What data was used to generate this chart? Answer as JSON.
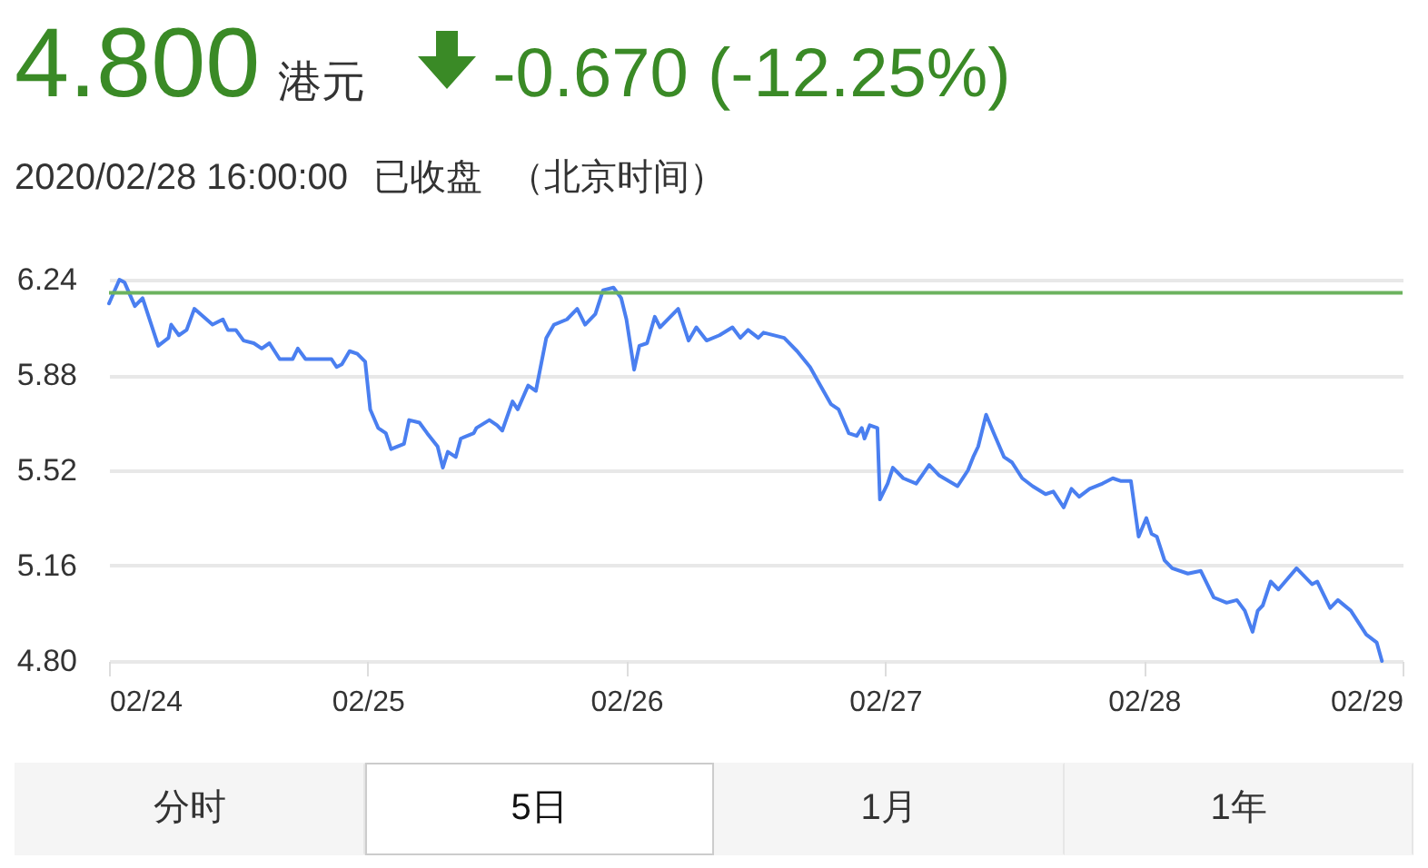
{
  "chart_data": {
    "type": "line",
    "title": "4.800",
    "annotations": [
      "港元",
      "-0.670 (-12.25%)",
      "2020/02/28 16:00:00",
      "已收盘",
      "（北京时间）",
      "分时",
      "5日",
      "1月",
      "1年"
    ],
    "x": [
      "2020-02-24T00:00",
      "2020-02-24T00:58",
      "2020-02-24T01:26",
      "2020-02-24T02:24",
      "2020-02-24T03:07",
      "2020-02-24T04:05",
      "2020-02-24T04:34",
      "2020-02-24T05:31",
      "2020-02-24T05:46",
      "2020-02-24T06:29",
      "2020-02-24T07:12",
      "2020-02-24T07:55",
      "2020-02-24T09:36",
      "2020-02-24T10:34",
      "2020-02-24T11:02",
      "2020-02-24T11:46",
      "2020-02-24T12:29",
      "2020-02-24T13:26",
      "2020-02-24T14:10",
      "2020-02-24T14:53",
      "2020-02-24T15:50",
      "2020-02-24T17:02",
      "2020-02-24T17:31",
      "2020-02-24T18:14",
      "2020-02-24T19:26",
      "2020-02-24T20:38",
      "2020-02-24T21:07",
      "2020-02-24T21:36",
      "2020-02-24T22:19",
      "2020-02-24T23:02",
      "2020-02-24T23:46",
      "2020-02-25T00:14",
      "2020-02-25T00:58",
      "2020-02-25T01:41",
      "2020-02-25T02:10",
      "2020-02-25T03:22",
      "2020-02-25T03:50",
      "2020-02-25T04:48",
      "2020-02-25T05:31",
      "2020-02-25T06:29",
      "2020-02-25T06:58",
      "2020-02-25T07:26",
      "2020-02-25T08:10",
      "2020-02-25T08:38",
      "2020-02-25T09:50",
      "2020-02-25T10:05",
      "2020-02-25T11:17",
      "2020-02-25T12:00",
      "2020-02-25T12:29",
      "2020-02-25T13:26",
      "2020-02-25T13:55",
      "2020-02-25T14:53",
      "2020-02-25T15:36",
      "2020-02-25T16:34",
      "2020-02-25T17:17",
      "2020-02-25T18:29",
      "2020-02-25T19:26",
      "2020-02-25T20:10",
      "2020-02-25T21:07",
      "2020-02-25T21:50",
      "2020-02-25T22:48",
      "2020-02-25T23:31",
      "2020-02-26T00:00",
      "2020-02-26T00:43",
      "2020-02-26T01:12",
      "2020-02-26T01:55",
      "2020-02-26T02:38",
      "2020-02-26T03:07",
      "2020-02-26T04:48",
      "2020-02-26T05:46",
      "2020-02-26T06:29",
      "2020-02-26T07:26",
      "2020-02-26T08:38",
      "2020-02-26T09:50",
      "2020-02-26T10:34",
      "2020-02-26T11:17",
      "2020-02-26T12:14",
      "2020-02-26T12:43",
      "2020-02-26T14:38",
      "2020-02-26T15:50",
      "2020-02-26T17:02",
      "2020-02-26T18:00",
      "2020-02-26T18:58",
      "2020-02-26T19:41",
      "2020-02-26T20:38",
      "2020-02-26T21:22",
      "2020-02-26T21:50",
      "2020-02-26T22:05",
      "2020-02-26T22:34",
      "2020-02-26T23:17",
      "2020-02-26T23:31",
      "2020-02-27T00:14",
      "2020-02-27T00:43",
      "2020-02-27T01:41",
      "2020-02-27T02:53",
      "2020-02-27T04:05",
      "2020-02-27T05:02",
      "2020-02-27T06:43",
      "2020-02-27T07:41",
      "2020-02-27T08:10",
      "2020-02-27T08:38",
      "2020-02-27T09:22",
      "2020-02-27T10:05",
      "2020-02-27T11:02",
      "2020-02-27T11:46",
      "2020-02-27T12:43",
      "2020-02-27T13:41",
      "2020-02-27T14:53",
      "2020-02-27T15:36",
      "2020-02-27T16:34",
      "2020-02-27T17:17",
      "2020-02-27T18:00",
      "2020-02-27T18:58",
      "2020-02-27T20:10",
      "2020-02-27T21:07",
      "2020-02-27T21:50",
      "2020-02-27T22:48",
      "2020-02-27T23:31",
      "2020-02-28T00:14",
      "2020-02-28T00:43",
      "2020-02-28T01:12",
      "2020-02-28T01:55",
      "2020-02-28T02:38",
      "2020-02-28T04:05",
      "2020-02-28T05:17",
      "2020-02-28T06:29",
      "2020-02-28T07:41",
      "2020-02-28T08:38",
      "2020-02-28T09:22",
      "2020-02-28T10:05",
      "2020-02-28T10:34",
      "2020-02-28T11:02",
      "2020-02-28T11:46",
      "2020-02-28T12:29",
      "2020-02-28T14:10",
      "2020-02-28T15:36",
      "2020-02-28T16:05",
      "2020-02-28T17:17",
      "2020-02-28T18:00",
      "2020-02-28T19:12",
      "2020-02-28T20:38",
      "2020-02-28T21:36",
      "2020-02-28T22:05"
    ],
    "series": [
      {
        "color": "#4a7ff0",
        "values": [
          6.15,
          6.24,
          6.23,
          6.14,
          6.17,
          6.05,
          5.99,
          6.02,
          6.07,
          6.03,
          6.05,
          6.13,
          6.07,
          6.09,
          6.05,
          6.05,
          6.01,
          6.0,
          5.98,
          6.0,
          5.94,
          5.94,
          5.98,
          5.94,
          5.94,
          5.94,
          5.91,
          5.92,
          5.97,
          5.96,
          5.93,
          5.75,
          5.68,
          5.66,
          5.6,
          5.62,
          5.71,
          5.7,
          5.66,
          5.61,
          5.53,
          5.59,
          5.57,
          5.64,
          5.66,
          5.68,
          5.71,
          5.69,
          5.67,
          5.78,
          5.75,
          5.84,
          5.82,
          6.02,
          6.07,
          6.09,
          6.13,
          6.07,
          6.11,
          6.2,
          6.21,
          6.17,
          6.09,
          5.9,
          5.99,
          6.0,
          6.1,
          6.06,
          6.13,
          6.01,
          6.06,
          6.01,
          6.03,
          6.06,
          6.02,
          6.05,
          6.02,
          6.04,
          6.02,
          5.97,
          5.91,
          5.84,
          5.77,
          5.75,
          5.66,
          5.65,
          5.68,
          5.64,
          5.69,
          5.68,
          5.41,
          5.47,
          5.53,
          5.49,
          5.47,
          5.54,
          5.5,
          5.46,
          5.52,
          5.57,
          5.61,
          5.73,
          5.66,
          5.57,
          5.55,
          5.49,
          5.46,
          5.43,
          5.44,
          5.38,
          5.45,
          5.42,
          5.45,
          5.47,
          5.49,
          5.48,
          5.48,
          5.27,
          5.34,
          5.28,
          5.27,
          5.18,
          5.15,
          5.13,
          5.14,
          5.04,
          5.02,
          5.03,
          4.99,
          4.91,
          4.99,
          5.01,
          5.1,
          5.07,
          5.15,
          5.09,
          5.1,
          5.0,
          5.03,
          4.99,
          4.9,
          4.87,
          4.8
        ]
      }
    ],
    "xlim": [
      "2020-02-24",
      "2020-02-29"
    ],
    "xticks": [
      {
        "value": "2020-02-24",
        "label": "02/24"
      },
      {
        "value": "2020-02-25",
        "label": "02/25"
      },
      {
        "value": "2020-02-26",
        "label": "02/26"
      },
      {
        "value": "2020-02-27",
        "label": "02/27"
      },
      {
        "value": "2020-02-28",
        "label": "02/28"
      },
      {
        "value": "2020-02-29",
        "label": "02/29"
      }
    ],
    "ylim": [
      4.8,
      6.24
    ],
    "yticks": [
      {
        "value": 4.8,
        "label": "4.80"
      },
      {
        "value": 5.16,
        "label": "5.16"
      },
      {
        "value": 5.52,
        "label": "5.52"
      },
      {
        "value": 5.88,
        "label": "5.88"
      },
      {
        "value": 6.24,
        "label": "6.24"
      }
    ],
    "ref_lines": [
      {
        "axis": "y",
        "value": 6.19,
        "color": "#6cb35f"
      }
    ],
    "grid": "y",
    "marker": "none",
    "line_style": "solid"
  }
}
